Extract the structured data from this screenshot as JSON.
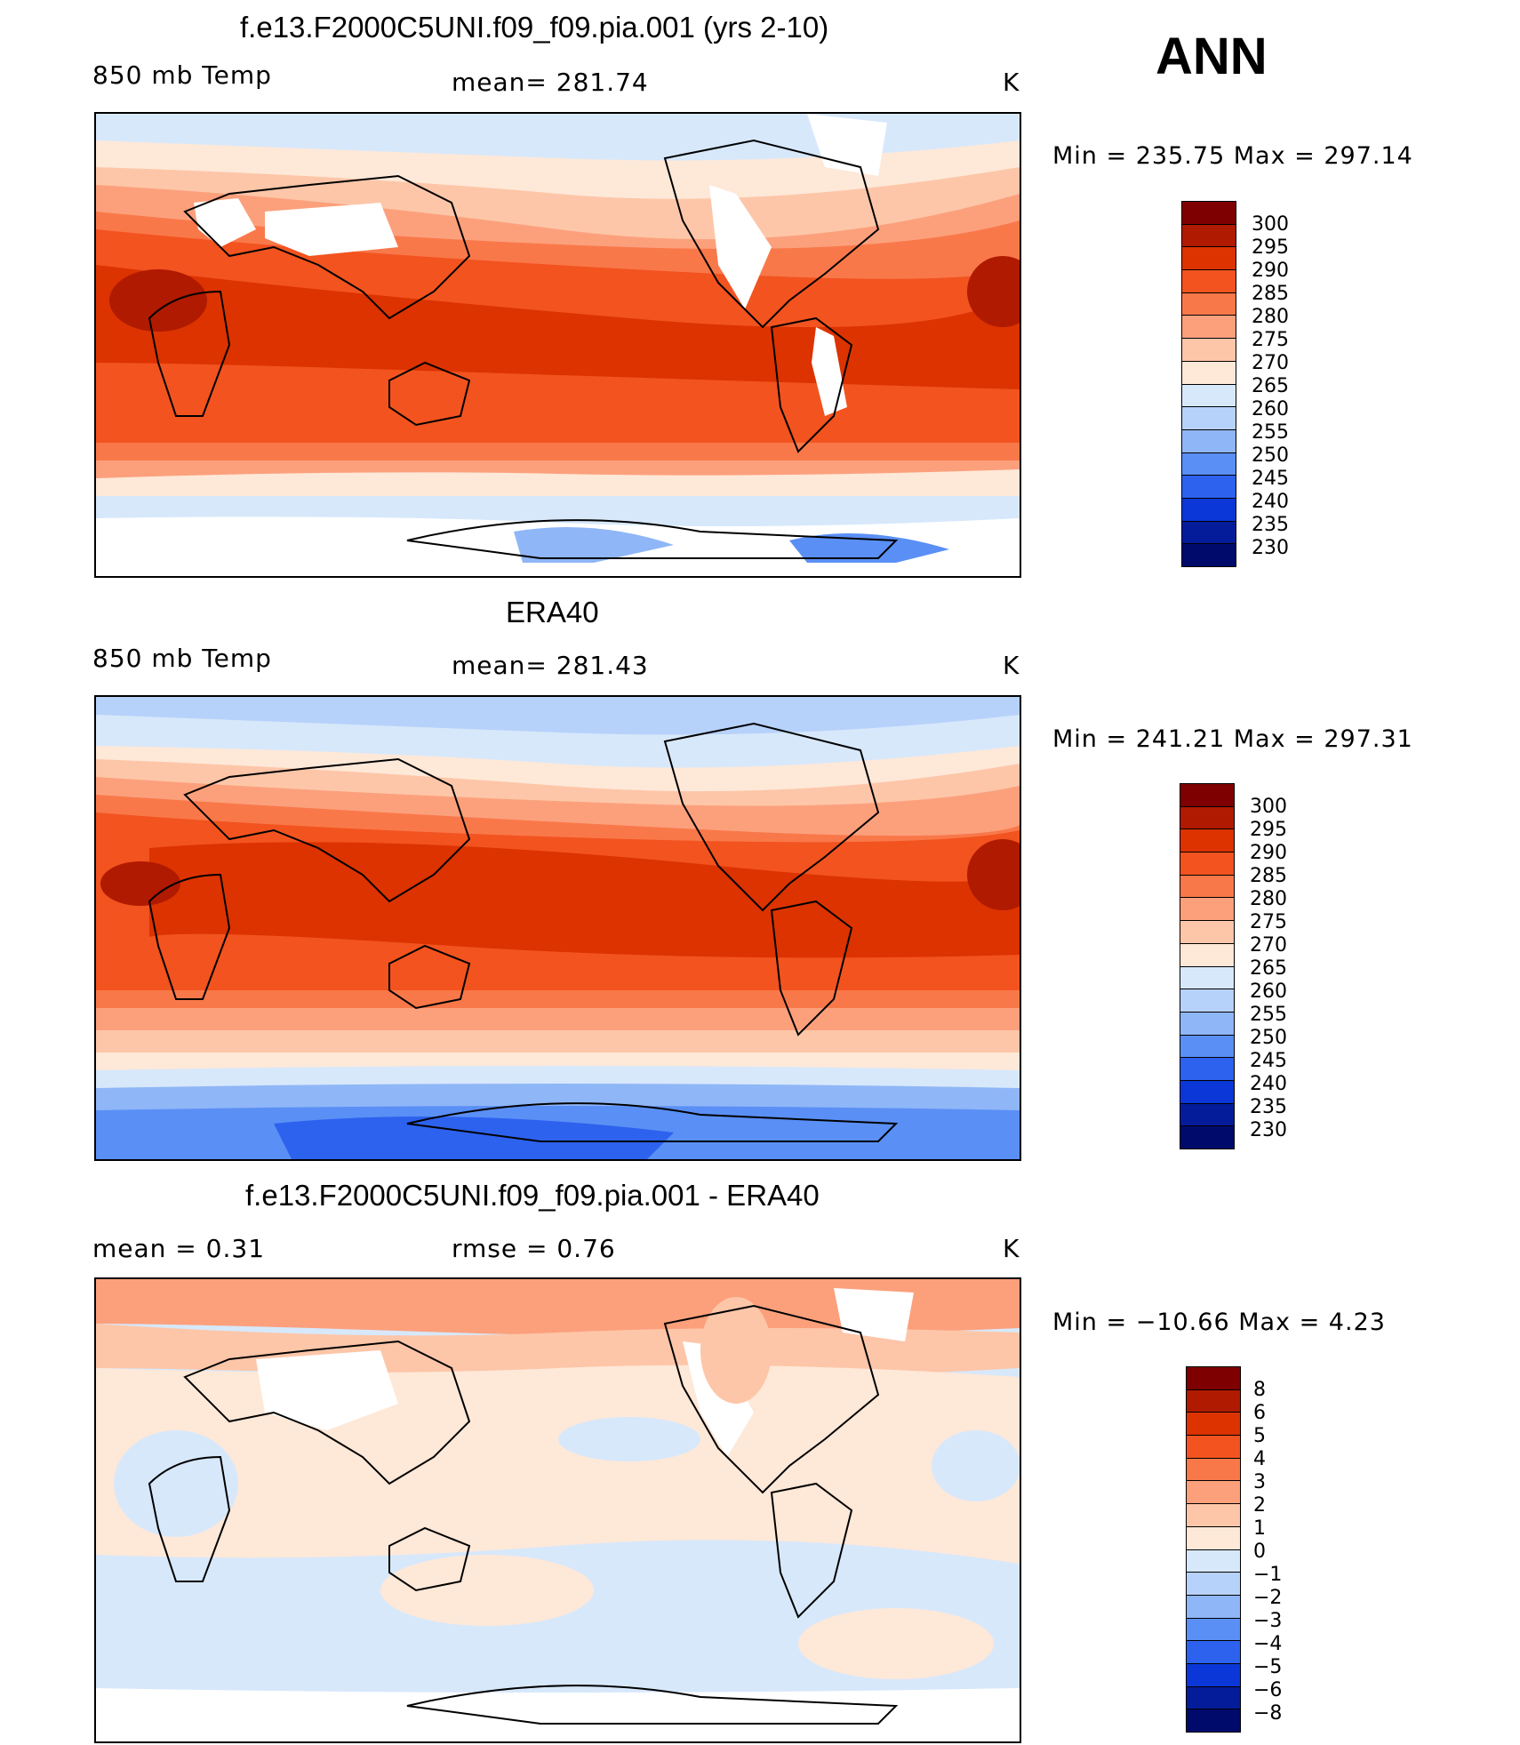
{
  "season": "ANN",
  "panels": [
    {
      "title": "f.e13.F2000C5UNI.f09_f09.pia.001 (yrs 2-10)",
      "left_label": "850 mb Temp",
      "center_label": "mean= 281.74",
      "units": "K",
      "minmax": "Min  =  235.75  Max  =  297.14",
      "colorbar": [
        "300",
        "295",
        "290",
        "285",
        "280",
        "275",
        "270",
        "265",
        "260",
        "255",
        "250",
        "245",
        "240",
        "235",
        "230"
      ]
    },
    {
      "title": "ERA40",
      "left_label": "850 mb Temp",
      "center_label": "mean= 281.43",
      "units": "K",
      "minmax": "Min  =  241.21  Max  =  297.31",
      "colorbar": [
        "300",
        "295",
        "290",
        "285",
        "280",
        "275",
        "270",
        "265",
        "260",
        "255",
        "250",
        "245",
        "240",
        "235",
        "230"
      ]
    },
    {
      "title": "f.e13.F2000C5UNI.f09_f09.pia.001 - ERA40",
      "left_label": "mean =     0.31",
      "center_label": "rmse =     0.76",
      "units": "K",
      "minmax": "Min  =  −10.66  Max  =      4.23",
      "colorbar": [
        "8",
        "6",
        "5",
        "4",
        "3",
        "2",
        "1",
        "0",
        "−1",
        "−2",
        "−3",
        "−4",
        "−5",
        "−6",
        "−8"
      ]
    }
  ],
  "colors": {
    "abs_scale": [
      "#7f0000",
      "#b01a00",
      "#dc3300",
      "#f2531f",
      "#f9784a",
      "#fca07c",
      "#fdc6a8",
      "#fee8d8",
      "#d7e8fb",
      "#b7d2fa",
      "#8fb6f7",
      "#5a8ff5",
      "#2d62ee",
      "#0b37d8",
      "#041c9a",
      "#000a6b"
    ],
    "diff_scale": [
      "#7f0000",
      "#b01a00",
      "#dc3300",
      "#f2531f",
      "#f9784a",
      "#fca07c",
      "#fdc6a8",
      "#fee8d8",
      "#d7e8fb",
      "#b7d2fa",
      "#8fb6f7",
      "#5a8ff5",
      "#2d62ee",
      "#0b37d8",
      "#041c9a",
      "#000a6b"
    ]
  }
}
